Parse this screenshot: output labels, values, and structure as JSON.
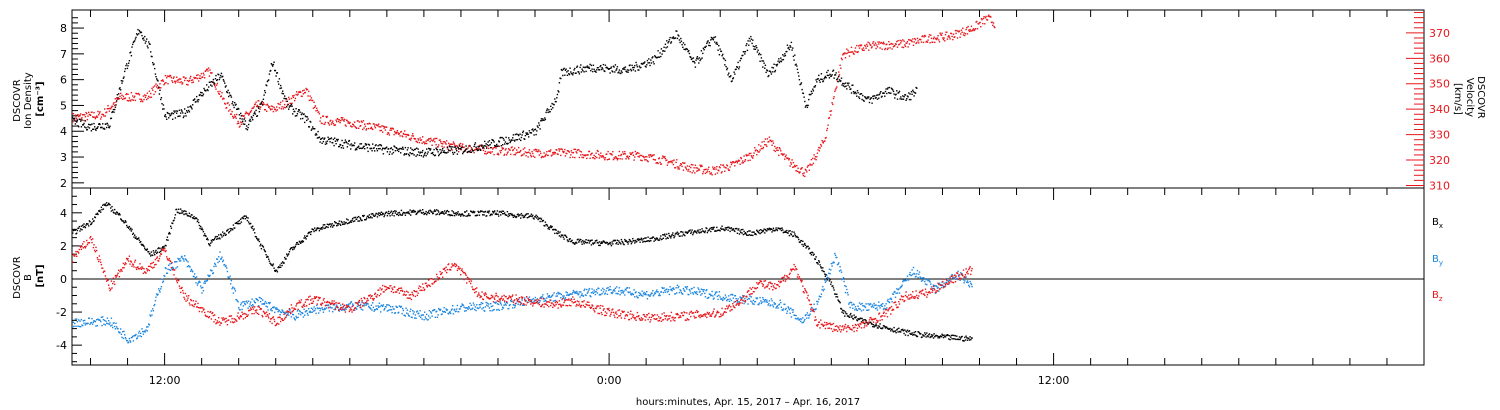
{
  "chart_data": [
    {
      "type": "scatter",
      "panel": "plasma",
      "xlabel": "hours:minutes, Apr. 15, 2017 – Apr. 16, 2017",
      "x_ticks": [
        {
          "hour": 12,
          "label": "12:00"
        },
        {
          "hour": 24,
          "label": "0:00"
        },
        {
          "hour": 36,
          "label": "12:00"
        }
      ],
      "xlim": [
        9.5,
        46
      ],
      "left_axis": {
        "label_lines": [
          "DSCOVR",
          "Ion Density",
          "[cm⁻³]"
        ],
        "ylim": [
          1.8,
          8.7
        ],
        "ticks": [
          2,
          3,
          4,
          5,
          6,
          7,
          8
        ],
        "color": "#000000"
      },
      "right_axis": {
        "label_lines": [
          "DSCOVR",
          "Velocity",
          "[km/s]"
        ],
        "ylim": [
          309,
          379
        ],
        "ticks": [
          310,
          320,
          330,
          340,
          350,
          360,
          370
        ],
        "color": "#e8161b"
      },
      "series": [
        {
          "axis": "left",
          "color": "#000000",
          "points": [
            [
              9.5,
              4.4
            ],
            [
              10.0,
              4.2
            ],
            [
              10.5,
              4.3
            ],
            [
              10.9,
              6.3
            ],
            [
              11.3,
              8.0
            ],
            [
              11.6,
              7.2
            ],
            [
              12.0,
              4.6
            ],
            [
              12.5,
              4.7
            ],
            [
              13.0,
              5.5
            ],
            [
              13.5,
              6.2
            ],
            [
              13.8,
              5.2
            ],
            [
              14.2,
              4.2
            ],
            [
              14.6,
              5.0
            ],
            [
              14.9,
              6.7
            ],
            [
              15.3,
              5.0
            ],
            [
              15.8,
              4.5
            ],
            [
              16.2,
              3.7
            ],
            [
              17.0,
              3.5
            ],
            [
              18.0,
              3.3
            ],
            [
              19.0,
              3.2
            ],
            [
              20.0,
              3.3
            ],
            [
              21.0,
              3.6
            ],
            [
              22.0,
              4.0
            ],
            [
              22.6,
              5.4
            ],
            [
              22.7,
              6.3
            ],
            [
              23.5,
              6.5
            ],
            [
              24.5,
              6.4
            ],
            [
              25.2,
              6.8
            ],
            [
              25.8,
              7.8
            ],
            [
              26.3,
              6.6
            ],
            [
              26.8,
              7.7
            ],
            [
              27.3,
              6.0
            ],
            [
              27.8,
              7.6
            ],
            [
              28.3,
              6.2
            ],
            [
              28.9,
              7.4
            ],
            [
              29.3,
              5.0
            ],
            [
              29.6,
              6.0
            ],
            [
              30.0,
              6.3
            ],
            [
              30.5,
              5.7
            ],
            [
              31.0,
              5.2
            ],
            [
              31.5,
              5.6
            ],
            [
              32.0,
              5.3
            ],
            [
              32.3,
              5.6
            ]
          ]
        },
        {
          "axis": "right",
          "color": "#e8161b",
          "points": [
            [
              9.5,
              337
            ],
            [
              10.3,
              338
            ],
            [
              10.8,
              345
            ],
            [
              11.5,
              345
            ],
            [
              12.0,
              352
            ],
            [
              12.6,
              351
            ],
            [
              13.2,
              355
            ],
            [
              13.6,
              343
            ],
            [
              14.0,
              335
            ],
            [
              14.5,
              342
            ],
            [
              14.9,
              340
            ],
            [
              15.3,
              343
            ],
            [
              15.8,
              348
            ],
            [
              16.2,
              336
            ],
            [
              17.0,
              335
            ],
            [
              18.0,
              332
            ],
            [
              19.0,
              328
            ],
            [
              20.0,
              325
            ],
            [
              21.0,
              324
            ],
            [
              22.0,
              323
            ],
            [
              23.0,
              323
            ],
            [
              24.0,
              322
            ],
            [
              24.8,
              322
            ],
            [
              25.5,
              320
            ],
            [
              26.2,
              317
            ],
            [
              26.8,
              316
            ],
            [
              27.3,
              318
            ],
            [
              27.8,
              322
            ],
            [
              28.3,
              328
            ],
            [
              28.8,
              320
            ],
            [
              29.3,
              315
            ],
            [
              29.8,
              328
            ],
            [
              30.3,
              362
            ],
            [
              31.0,
              365
            ],
            [
              32.0,
              366
            ],
            [
              32.6,
              368
            ],
            [
              33.2,
              369
            ],
            [
              33.8,
              372
            ],
            [
              34.2,
              376
            ],
            [
              34.4,
              374
            ]
          ]
        }
      ]
    },
    {
      "type": "scatter",
      "panel": "magnetic",
      "left_axis": {
        "label_lines": [
          "DSCOVR",
          "B",
          "[nT]"
        ],
        "ylim": [
          -5.2,
          5.5
        ],
        "ticks": [
          -4,
          -2,
          0,
          2,
          4
        ],
        "zero_line": true
      },
      "series": [
        {
          "name": "Bx",
          "color": "#000000",
          "points": [
            [
              9.5,
              2.8
            ],
            [
              10.0,
              3.5
            ],
            [
              10.4,
              4.6
            ],
            [
              10.8,
              3.8
            ],
            [
              11.2,
              2.6
            ],
            [
              11.6,
              1.5
            ],
            [
              12.0,
              2.0
            ],
            [
              12.3,
              4.2
            ],
            [
              12.8,
              3.8
            ],
            [
              13.2,
              2.2
            ],
            [
              13.6,
              2.8
            ],
            [
              14.2,
              3.8
            ],
            [
              14.6,
              2.0
            ],
            [
              15.0,
              0.5
            ],
            [
              15.4,
              1.8
            ],
            [
              16.0,
              3.0
            ],
            [
              17.0,
              3.6
            ],
            [
              18.0,
              4.0
            ],
            [
              19.0,
              4.1
            ],
            [
              20.0,
              4.0
            ],
            [
              21.0,
              4.0
            ],
            [
              22.0,
              3.8
            ],
            [
              22.6,
              2.8
            ],
            [
              23.0,
              2.3
            ],
            [
              24.0,
              2.2
            ],
            [
              25.0,
              2.4
            ],
            [
              26.0,
              2.8
            ],
            [
              27.0,
              3.1
            ],
            [
              27.8,
              2.8
            ],
            [
              28.5,
              3.1
            ],
            [
              29.0,
              2.7
            ],
            [
              29.5,
              1.5
            ],
            [
              30.0,
              -0.3
            ],
            [
              30.3,
              -2.0
            ],
            [
              30.8,
              -2.5
            ],
            [
              31.3,
              -2.8
            ],
            [
              32.0,
              -3.2
            ],
            [
              32.6,
              -3.4
            ],
            [
              33.2,
              -3.5
            ],
            [
              33.8,
              -3.6
            ]
          ]
        },
        {
          "name": "By",
          "color": "#1b86e0",
          "points": [
            [
              9.5,
              -2.6
            ],
            [
              10.5,
              -2.5
            ],
            [
              11.0,
              -3.6
            ],
            [
              11.5,
              -3.0
            ],
            [
              12.0,
              0.5
            ],
            [
              12.5,
              1.3
            ],
            [
              13.0,
              -0.6
            ],
            [
              13.5,
              1.5
            ],
            [
              14.0,
              -1.6
            ],
            [
              14.5,
              -1.3
            ],
            [
              15.0,
              -1.8
            ],
            [
              15.5,
              -2.2
            ],
            [
              16.0,
              -1.8
            ],
            [
              17.0,
              -1.6
            ],
            [
              18.0,
              -1.7
            ],
            [
              19.0,
              -2.2
            ],
            [
              20.0,
              -1.7
            ],
            [
              21.0,
              -1.6
            ],
            [
              22.0,
              -1.2
            ],
            [
              23.0,
              -0.9
            ],
            [
              24.0,
              -0.6
            ],
            [
              25.0,
              -0.9
            ],
            [
              25.8,
              -0.6
            ],
            [
              26.5,
              -0.8
            ],
            [
              27.3,
              -1.1
            ],
            [
              28.0,
              -1.3
            ],
            [
              28.6,
              -1.5
            ],
            [
              29.2,
              -2.5
            ],
            [
              29.6,
              -1.5
            ],
            [
              30.1,
              1.5
            ],
            [
              30.5,
              -1.6
            ],
            [
              31.0,
              -1.7
            ],
            [
              31.5,
              -1.5
            ],
            [
              32.2,
              0.5
            ],
            [
              32.8,
              -0.6
            ],
            [
              33.4,
              0.3
            ],
            [
              33.8,
              -0.4
            ]
          ]
        },
        {
          "name": "Bz",
          "color": "#e8161b",
          "points": [
            [
              9.5,
              1.3
            ],
            [
              10.0,
              2.5
            ],
            [
              10.5,
              -0.5
            ],
            [
              11.0,
              1.2
            ],
            [
              11.5,
              0.5
            ],
            [
              12.0,
              1.8
            ],
            [
              12.5,
              -1.0
            ],
            [
              13.0,
              -1.8
            ],
            [
              13.5,
              -2.6
            ],
            [
              14.0,
              -2.2
            ],
            [
              14.5,
              -1.8
            ],
            [
              15.0,
              -2.6
            ],
            [
              15.5,
              -1.6
            ],
            [
              16.0,
              -1.2
            ],
            [
              17.0,
              -1.8
            ],
            [
              17.6,
              -1.0
            ],
            [
              18.0,
              -0.4
            ],
            [
              18.6,
              -1.0
            ],
            [
              19.4,
              0.2
            ],
            [
              19.8,
              1.0
            ],
            [
              20.5,
              -1.0
            ],
            [
              21.5,
              -1.2
            ],
            [
              22.5,
              -1.5
            ],
            [
              23.0,
              -1.3
            ],
            [
              24.0,
              -2.0
            ],
            [
              25.0,
              -2.3
            ],
            [
              26.0,
              -2.2
            ],
            [
              27.0,
              -2.0
            ],
            [
              27.6,
              -1.2
            ],
            [
              28.0,
              -0.2
            ],
            [
              28.5,
              -0.5
            ],
            [
              29.0,
              0.8
            ],
            [
              29.6,
              -2.6
            ],
            [
              30.2,
              -3.0
            ],
            [
              30.8,
              -2.8
            ],
            [
              31.5,
              -2.0
            ],
            [
              32.0,
              -1.0
            ],
            [
              32.6,
              -0.8
            ],
            [
              33.2,
              0.0
            ],
            [
              33.8,
              0.6
            ]
          ]
        }
      ]
    }
  ],
  "legend": [
    {
      "label_main": "B",
      "label_sub": "x",
      "color": "#000000"
    },
    {
      "label_main": "B",
      "label_sub": "y",
      "color": "#1b86e0"
    },
    {
      "label_main": "B",
      "label_sub": "z",
      "color": "#e8161b"
    }
  ]
}
